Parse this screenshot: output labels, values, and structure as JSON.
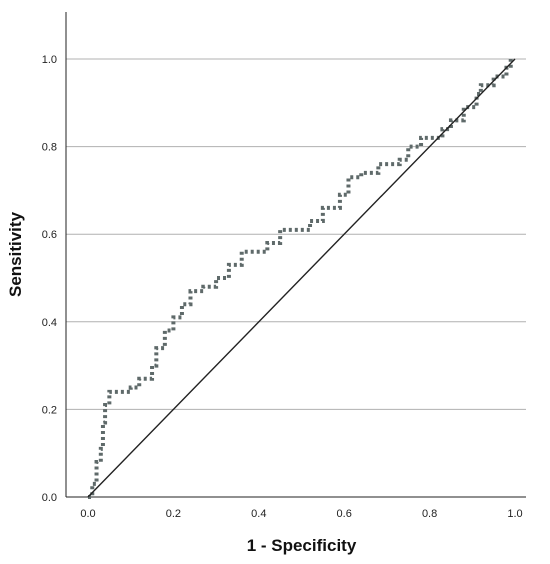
{
  "chart_data": {
    "type": "line",
    "title": "",
    "xlabel": "1 - Specificity",
    "ylabel": "Sensitivity",
    "xlim": [
      0.0,
      1.0
    ],
    "ylim": [
      0.0,
      1.0
    ],
    "x_ticks": [
      "0.0",
      "0.2",
      "0.4",
      "0.6",
      "0.8",
      "1.0"
    ],
    "y_ticks": [
      "0.0",
      "0.2",
      "0.4",
      "0.6",
      "0.8",
      "1.0"
    ],
    "grid": "horizontal",
    "legend": "none",
    "colors": {
      "roc": "#5f6a6a",
      "reference": "#222222",
      "grid": "#b0b0b0",
      "axis": "#222222"
    },
    "series": [
      {
        "style": "dotted-step",
        "x": [
          0.0,
          0.01,
          0.02,
          0.03,
          0.035,
          0.04,
          0.05,
          0.1,
          0.12,
          0.15,
          0.16,
          0.18,
          0.2,
          0.22,
          0.24,
          0.27,
          0.3,
          0.33,
          0.36,
          0.39,
          0.42,
          0.45,
          0.48,
          0.52,
          0.55,
          0.59,
          0.61,
          0.64,
          0.68,
          0.73,
          0.75,
          0.78,
          0.83,
          0.85,
          0.88,
          0.91,
          0.92,
          0.95,
          0.98,
          0.99
        ],
        "y": [
          0.0,
          0.03,
          0.08,
          0.11,
          0.17,
          0.21,
          0.24,
          0.25,
          0.27,
          0.3,
          0.34,
          0.38,
          0.41,
          0.44,
          0.47,
          0.48,
          0.5,
          0.53,
          0.56,
          0.56,
          0.58,
          0.61,
          0.61,
          0.63,
          0.66,
          0.69,
          0.73,
          0.74,
          0.76,
          0.77,
          0.8,
          0.82,
          0.84,
          0.86,
          0.89,
          0.92,
          0.94,
          0.96,
          0.98,
          1.0
        ]
      },
      {
        "style": "solid",
        "x": [
          0.0,
          1.0
        ],
        "y": [
          0.0,
          1.0
        ]
      }
    ]
  }
}
